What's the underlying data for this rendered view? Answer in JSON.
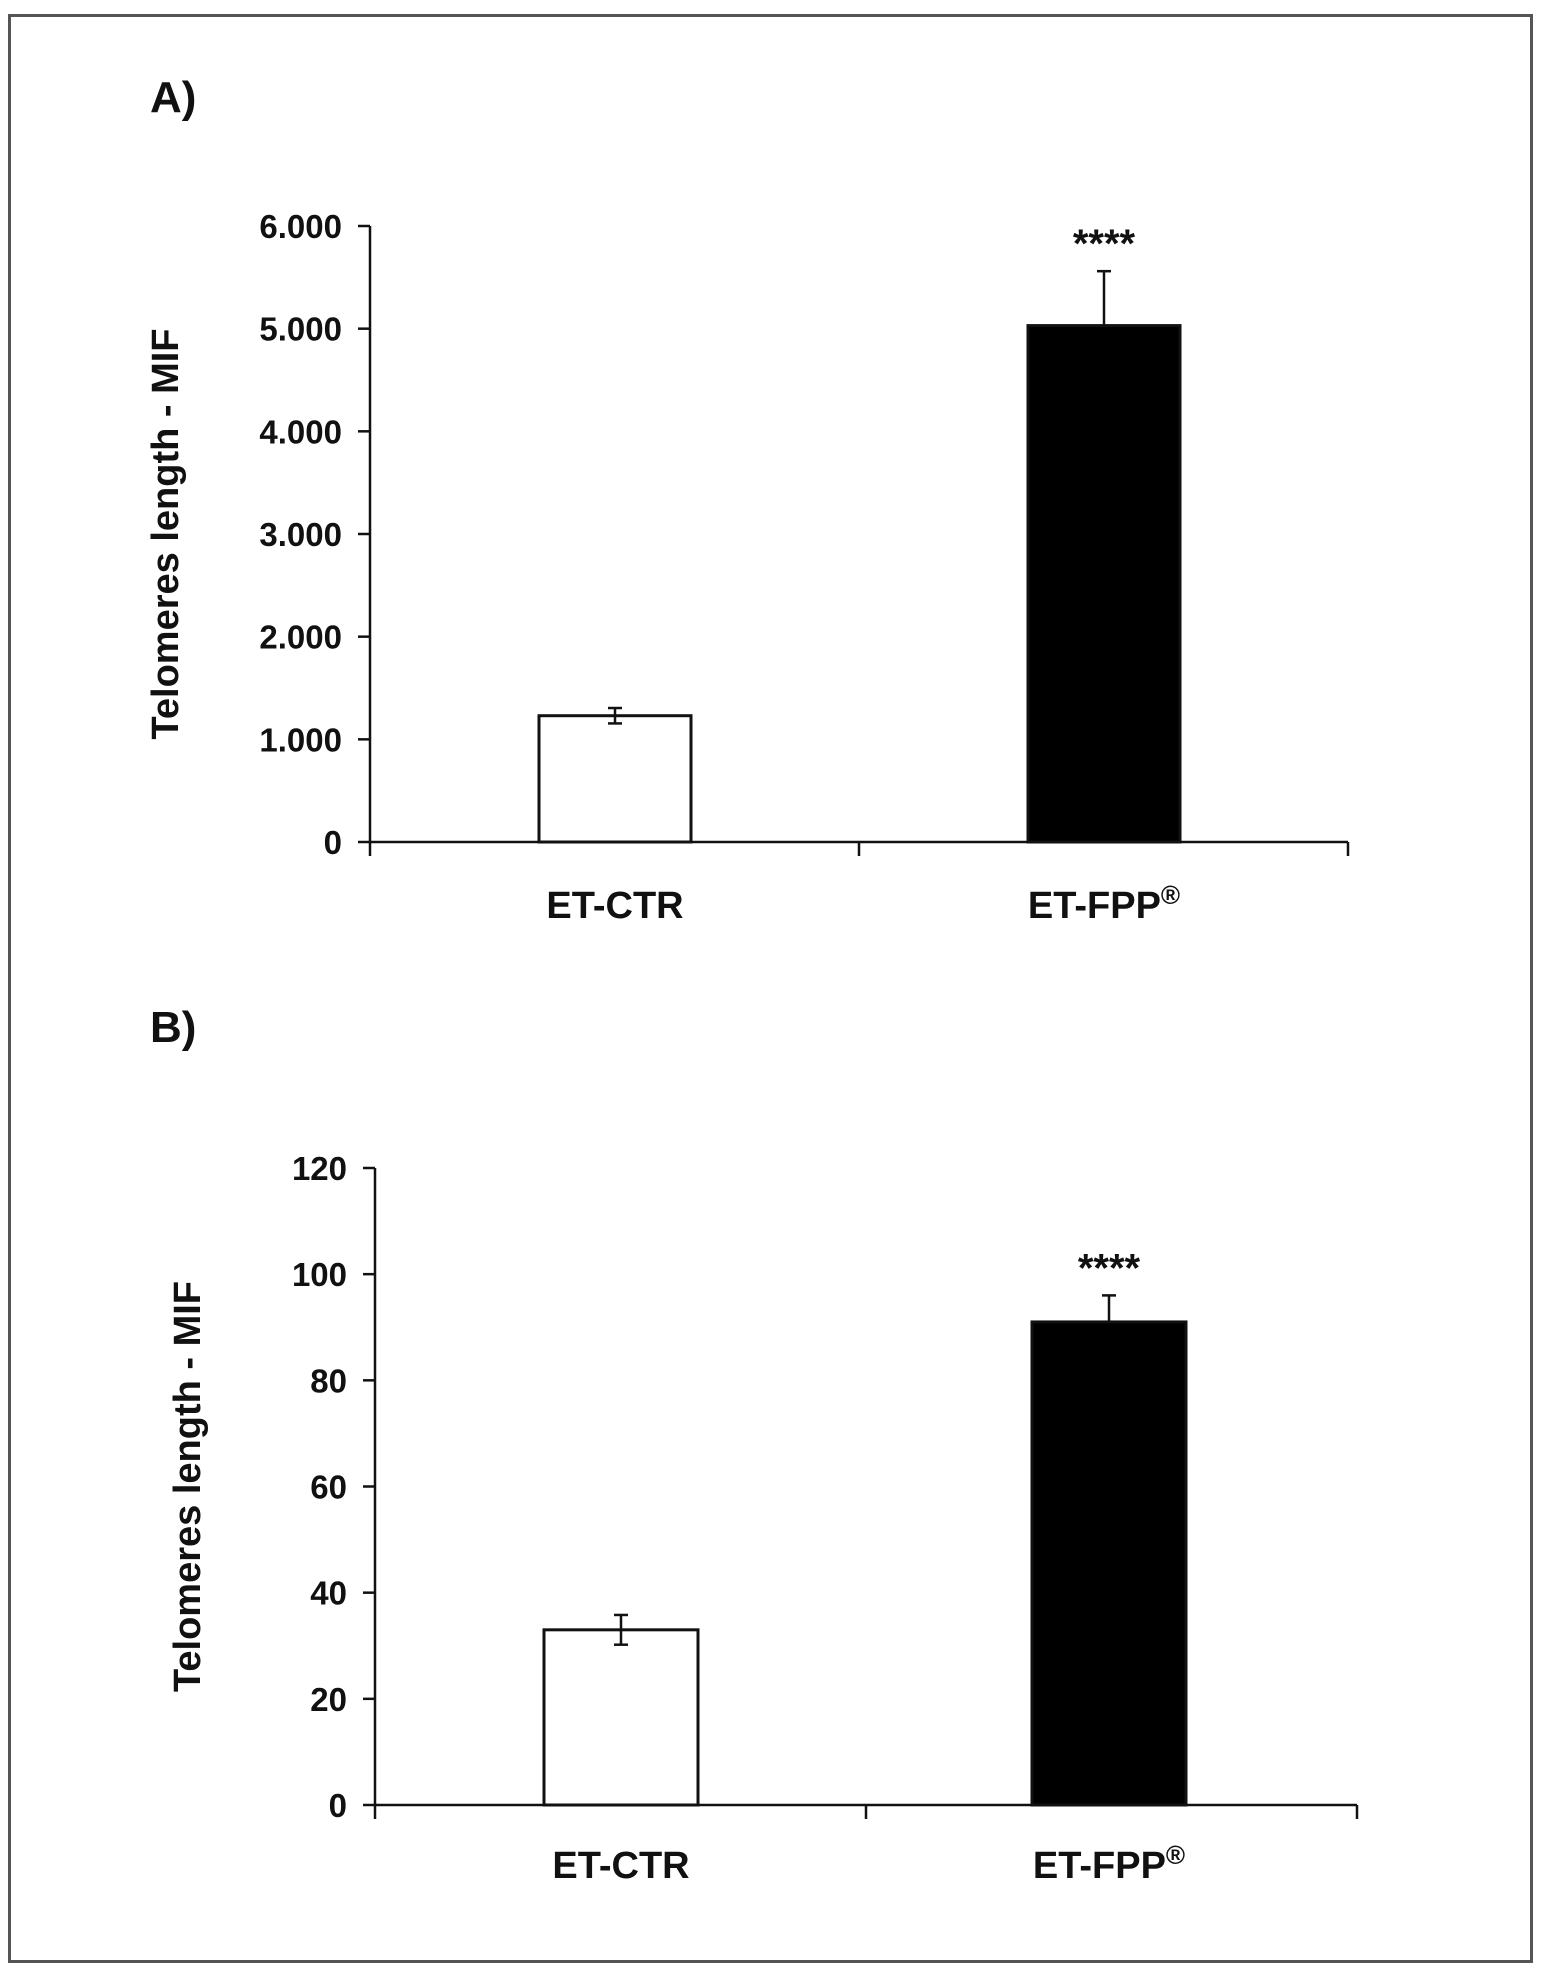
{
  "chart_data": [
    {
      "type": "bar",
      "panel_label": "A)",
      "title": "",
      "xlabel": "",
      "ylabel": "Telomeres length - MIF",
      "categories": [
        "ET-CTR",
        "ET-FPP®"
      ],
      "category_label_parts": [
        {
          "main": "ET-CTR",
          "sup": ""
        },
        {
          "main": "ET-FPP",
          "sup": "®"
        }
      ],
      "values": [
        1230,
        5030
      ],
      "errors": [
        75,
        530
      ],
      "bar_fills": [
        "#ffffff",
        "#000000"
      ],
      "annotations": [
        "",
        "****"
      ],
      "ylim": [
        0,
        6000
      ],
      "yticks": [
        0,
        1000,
        2000,
        3000,
        4000,
        5000,
        6000
      ],
      "ytick_labels": [
        "0",
        "1.000",
        "2.000",
        "3.000",
        "4.000",
        "5.000",
        "6.000"
      ],
      "grid": false
    },
    {
      "type": "bar",
      "panel_label": "B)",
      "title": "",
      "xlabel": "",
      "ylabel": "Telomeres length - MIF",
      "categories": [
        "ET-CTR",
        "ET-FPP®"
      ],
      "category_label_parts": [
        {
          "main": "ET-CTR",
          "sup": ""
        },
        {
          "main": "ET-FPP",
          "sup": "®"
        }
      ],
      "values": [
        33,
        91
      ],
      "errors": [
        2.8,
        5
      ],
      "bar_fills": [
        "#ffffff",
        "#000000"
      ],
      "annotations": [
        "",
        "****"
      ],
      "ylim": [
        0,
        120
      ],
      "yticks": [
        0,
        20,
        40,
        60,
        80,
        100,
        120
      ],
      "ytick_labels": [
        "0",
        "20",
        "40",
        "60",
        "80",
        "100",
        "120"
      ],
      "grid": false
    }
  ]
}
